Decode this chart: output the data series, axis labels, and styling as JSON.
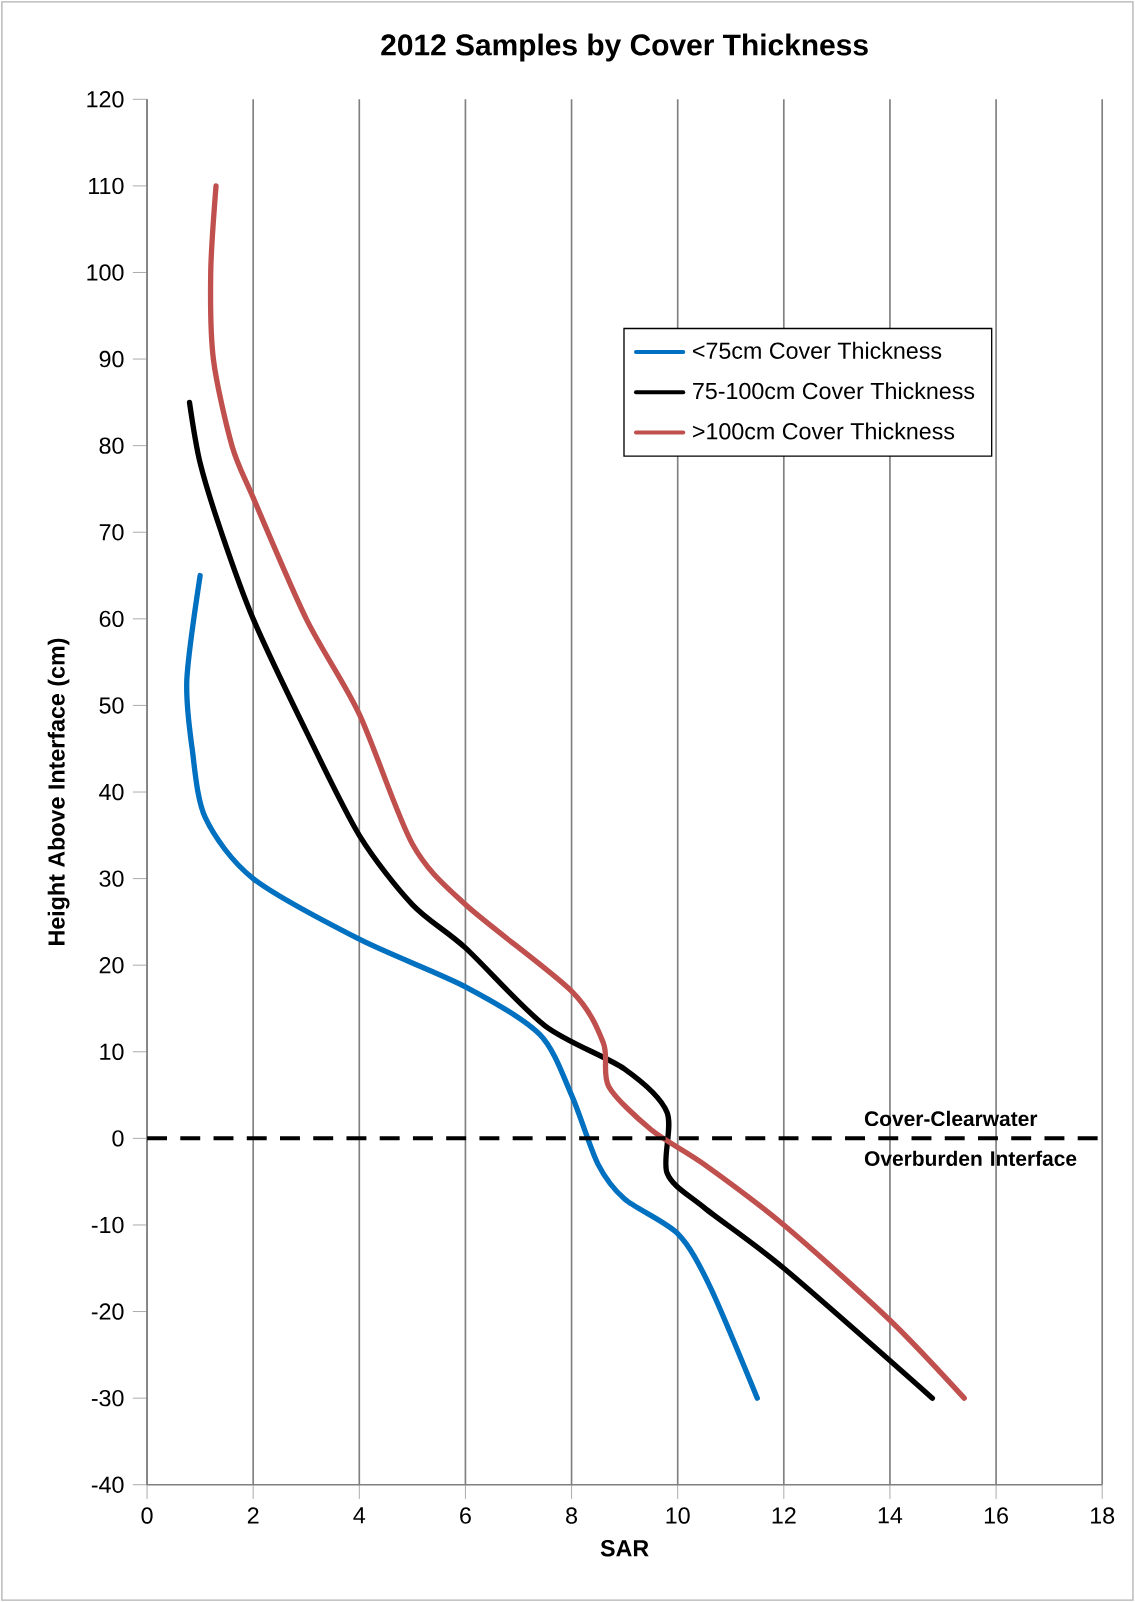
{
  "chart_data": {
    "type": "line",
    "title": "2012 Samples by Cover Thickness",
    "xlabel": "SAR",
    "ylabel": "Height Above Interface (cm)",
    "xlim": [
      0,
      18
    ],
    "xticks": [
      0,
      2,
      4,
      6,
      8,
      10,
      12,
      14,
      16,
      18
    ],
    "ylim": [
      -40,
      120
    ],
    "yticks": [
      -40,
      -30,
      -20,
      -10,
      0,
      10,
      20,
      30,
      40,
      50,
      60,
      70,
      80,
      90,
      100,
      110,
      120
    ],
    "grid": "x",
    "legend": "top right",
    "marker": "none",
    "line_style": "solid",
    "series": [
      {
        "name": "<75cm Cover Thickness",
        "color": "#0070c0",
        "x": [
          1.0,
          0.75,
          0.85,
          1.1,
          2,
          4,
          6,
          7.4,
          8,
          8.5,
          9,
          10,
          10.6,
          11.5
        ],
        "values": [
          65,
          53,
          45,
          37,
          30,
          23,
          17.5,
          12,
          5,
          -3,
          -7,
          -11,
          -17,
          -30
        ]
      },
      {
        "name": "75-100cm Cover Thickness",
        "color": "#000000",
        "x": [
          0.8,
          1,
          1.4,
          2,
          3,
          4,
          5,
          6,
          7.5,
          9,
          9.8,
          9.8,
          10.5,
          12,
          14.8
        ],
        "values": [
          85,
          78,
          70,
          60,
          47,
          35,
          27,
          22,
          13,
          8,
          3,
          -4,
          -8,
          -15,
          -30
        ]
      },
      {
        "name": ">100cm Cover Thickness",
        "color": "#c0504d",
        "x": [
          1.3,
          1.2,
          1.25,
          1.6,
          2,
          3,
          4,
          5,
          6,
          8,
          8.6,
          8.7,
          9.5,
          10.5,
          12,
          14,
          15.4
        ],
        "values": [
          110,
          100,
          90,
          80,
          74,
          60,
          49,
          34,
          27,
          17,
          11,
          6,
          1,
          -3,
          -10,
          -21,
          -30
        ]
      }
    ],
    "ref_lines": [
      {
        "axis": "y",
        "value": 0,
        "label": "Cover-Clearwater Overburden Interface",
        "color": "#000000",
        "line_style": "dashed"
      }
    ]
  }
}
